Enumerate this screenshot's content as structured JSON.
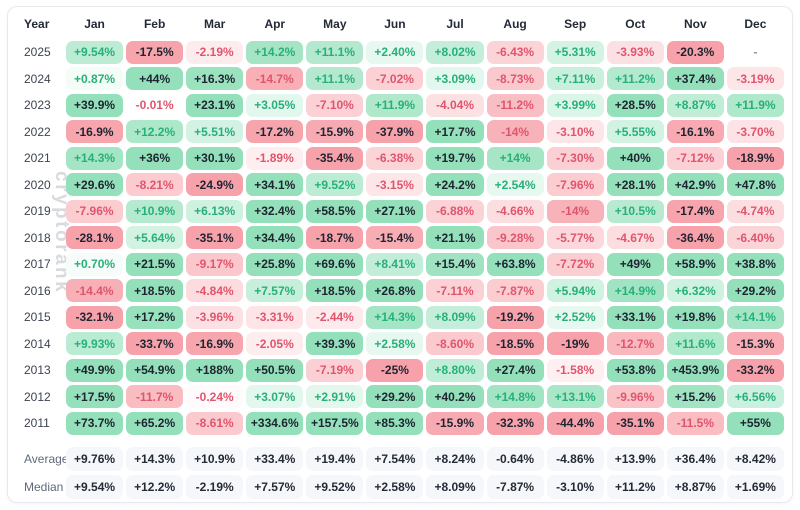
{
  "watermark": "cryptorank",
  "colors": {
    "positive_strong": "#93e0ba",
    "negative_strong": "#f7a2aa",
    "text_positive": "#27b079",
    "text_negative": "#e0556e",
    "text_dark": "#1e2430",
    "empty_text": "#8b93a1",
    "summary_cell_bg": "#f5f7fa",
    "summary_text": "#252b35",
    "border": "#e7e9ee",
    "watermark_color": "#d8dbde"
  },
  "chart_data": {
    "type": "heatmap",
    "unit": "percent",
    "columns": [
      "Year",
      "Jan",
      "Feb",
      "Mar",
      "Apr",
      "May",
      "Jun",
      "Jul",
      "Aug",
      "Sep",
      "Oct",
      "Nov",
      "Dec"
    ],
    "rows": [
      {
        "year": "2025",
        "values": [
          "+9.54%",
          "-17.5%",
          "-2.19%",
          "+14.2%",
          "+11.1%",
          "+2.40%",
          "+8.02%",
          "-6.43%",
          "+5.31%",
          "-3.93%",
          "-20.3%",
          "-"
        ]
      },
      {
        "year": "2024",
        "values": [
          "+0.87%",
          "+44%",
          "+16.3%",
          "-14.7%",
          "+11.1%",
          "-7.02%",
          "+3.09%",
          "-8.73%",
          "+7.11%",
          "+11.2%",
          "+37.4%",
          "-3.19%"
        ]
      },
      {
        "year": "2023",
        "values": [
          "+39.9%",
          "-0.01%",
          "+23.1%",
          "+3.05%",
          "-7.10%",
          "+11.9%",
          "-4.04%",
          "-11.2%",
          "+3.99%",
          "+28.5%",
          "+8.87%",
          "+11.9%"
        ]
      },
      {
        "year": "2022",
        "values": [
          "-16.9%",
          "+12.2%",
          "+5.51%",
          "-17.2%",
          "-15.9%",
          "-37.9%",
          "+17.7%",
          "-14%",
          "-3.10%",
          "+5.55%",
          "-16.1%",
          "-3.70%"
        ]
      },
      {
        "year": "2021",
        "values": [
          "+14.3%",
          "+36%",
          "+30.1%",
          "-1.89%",
          "-35.4%",
          "-6.38%",
          "+19.7%",
          "+14%",
          "-7.30%",
          "+40%",
          "-7.12%",
          "-18.9%"
        ]
      },
      {
        "year": "2020",
        "values": [
          "+29.6%",
          "-8.21%",
          "-24.9%",
          "+34.1%",
          "+9.52%",
          "-3.15%",
          "+24.2%",
          "+2.54%",
          "-7.96%",
          "+28.1%",
          "+42.9%",
          "+47.8%"
        ]
      },
      {
        "year": "2019",
        "values": [
          "-7.96%",
          "+10.9%",
          "+6.13%",
          "+32.4%",
          "+58.5%",
          "+27.1%",
          "-6.88%",
          "-4.66%",
          "-14%",
          "+10.5%",
          "-17.4%",
          "-4.74%"
        ]
      },
      {
        "year": "2018",
        "values": [
          "-28.1%",
          "+5.64%",
          "-35.1%",
          "+34.4%",
          "-18.7%",
          "-15.4%",
          "+21.1%",
          "-9.28%",
          "-5.77%",
          "-4.67%",
          "-36.4%",
          "-6.40%"
        ]
      },
      {
        "year": "2017",
        "values": [
          "+0.70%",
          "+21.5%",
          "-9.17%",
          "+25.8%",
          "+69.6%",
          "+8.41%",
          "+15.4%",
          "+63.8%",
          "-7.72%",
          "+49%",
          "+58.9%",
          "+38.8%"
        ]
      },
      {
        "year": "2016",
        "values": [
          "-14.4%",
          "+18.5%",
          "-4.84%",
          "+7.57%",
          "+18.5%",
          "+26.8%",
          "-7.11%",
          "-7.87%",
          "+5.94%",
          "+14.9%",
          "+6.32%",
          "+29.2%"
        ]
      },
      {
        "year": "2015",
        "values": [
          "-32.1%",
          "+17.2%",
          "-3.96%",
          "-3.31%",
          "-2.44%",
          "+14.3%",
          "+8.09%",
          "-19.2%",
          "+2.52%",
          "+33.1%",
          "+19.8%",
          "+14.1%"
        ]
      },
      {
        "year": "2014",
        "values": [
          "+9.93%",
          "-33.7%",
          "-16.9%",
          "-2.05%",
          "+39.3%",
          "+2.58%",
          "-8.60%",
          "-18.5%",
          "-19%",
          "-12.7%",
          "+11.6%",
          "-15.3%"
        ]
      },
      {
        "year": "2013",
        "values": [
          "+49.9%",
          "+54.9%",
          "+188%",
          "+50.5%",
          "-7.19%",
          "-25%",
          "+8.80%",
          "+27.4%",
          "-1.58%",
          "+53.8%",
          "+453.9%",
          "-33.2%"
        ]
      },
      {
        "year": "2012",
        "values": [
          "+17.5%",
          "-11.7%",
          "-0.24%",
          "+3.07%",
          "+2.91%",
          "+29.2%",
          "+40.2%",
          "+14.8%",
          "+13.1%",
          "-9.96%",
          "+15.2%",
          "+6.56%"
        ]
      },
      {
        "year": "2011",
        "values": [
          "+73.7%",
          "+65.2%",
          "-8.61%",
          "+334.6%",
          "+157.5%",
          "+85.3%",
          "-15.9%",
          "-32.3%",
          "-44.4%",
          "-35.1%",
          "-11.5%",
          "+55%"
        ]
      }
    ],
    "summary": [
      {
        "label": "Average",
        "values": [
          "+9.76%",
          "+14.3%",
          "+10.9%",
          "+33.4%",
          "+19.4%",
          "+7.54%",
          "+8.24%",
          "-0.64%",
          "-4.86%",
          "+13.9%",
          "+36.4%",
          "+8.42%"
        ]
      },
      {
        "label": "Median",
        "values": [
          "+9.54%",
          "+12.2%",
          "-2.19%",
          "+7.57%",
          "+9.52%",
          "+2.58%",
          "+8.09%",
          "-7.87%",
          "-3.10%",
          "+11.2%",
          "+8.87%",
          "+1.69%"
        ]
      }
    ]
  }
}
